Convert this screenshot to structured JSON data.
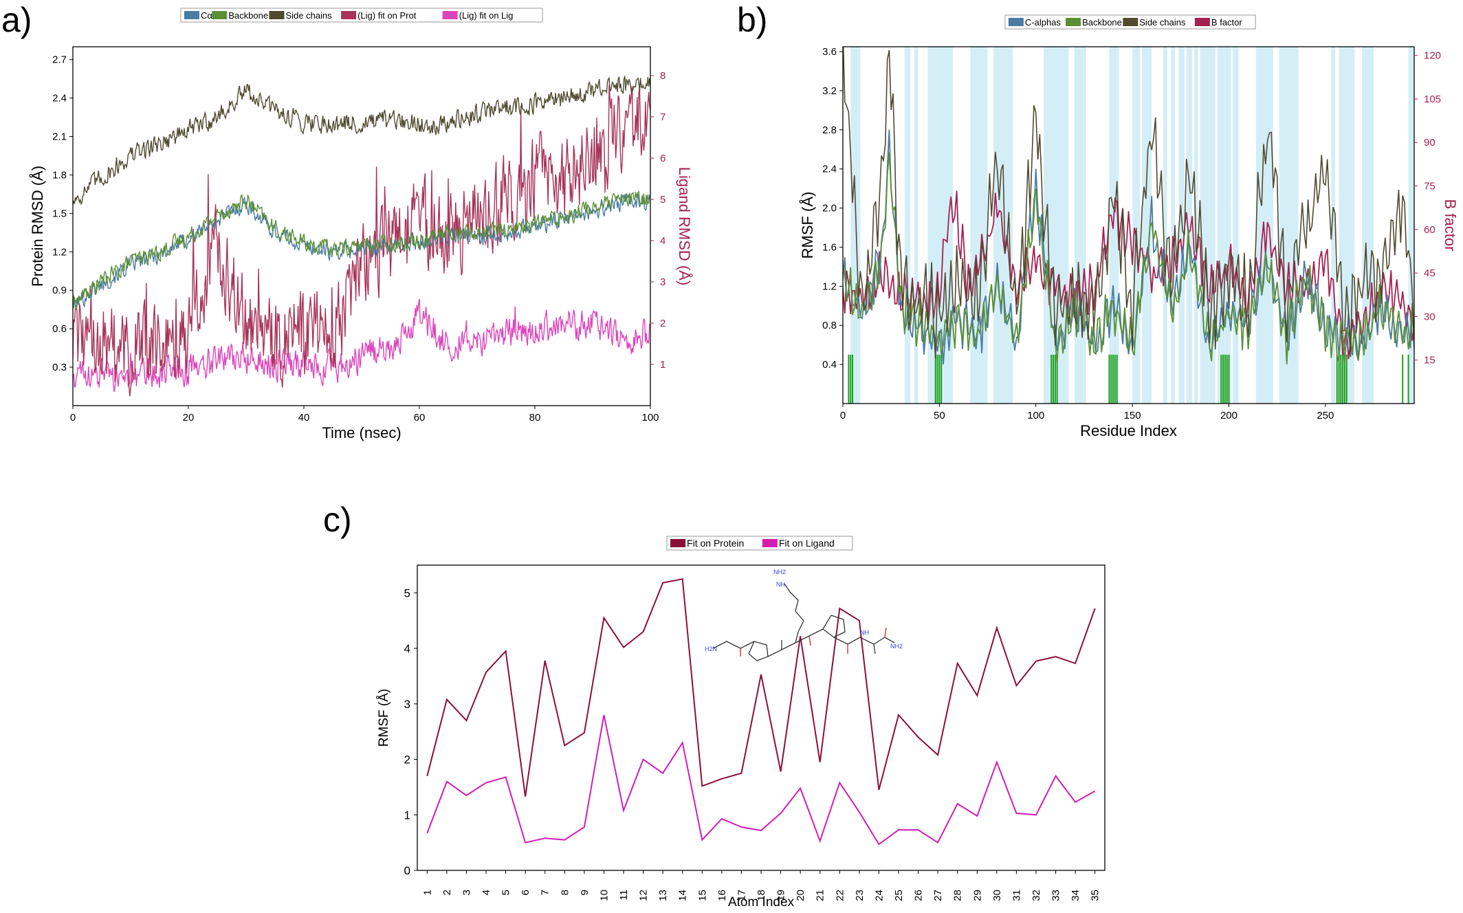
{
  "panel_labels": [
    "a)",
    "b)",
    "c)"
  ],
  "colors": {
    "calpha": "#4a7ba0",
    "backbone": "#5a8f35",
    "sidechains": "#4f4a30",
    "lig_prot": "#a83358",
    "lig_lig": "#dd44bb",
    "bfactor": "#a52050",
    "ligand_axis": "#a5204a",
    "sse": "#d4eef7",
    "contact": "#1aa01a",
    "fit_protein": "#8b1038",
    "fit_ligand": "#d41cb5"
  },
  "chart_data": [
    {
      "type": "line",
      "panel": "a)",
      "xlabel": "Time (nsec)",
      "ylabel": "Protein RMSD (Å)",
      "y2label": "Ligand RMSD (Å)",
      "xlim": [
        0,
        100
      ],
      "ylim": [
        0.0,
        2.8
      ],
      "y2lim": [
        0,
        8.7
      ],
      "xticks": [
        0,
        20,
        40,
        60,
        80,
        100
      ],
      "yticks": [
        0.3,
        0.6,
        0.9,
        1.2,
        1.5,
        1.8,
        2.1,
        2.4,
        2.7
      ],
      "y2ticks": [
        1,
        2,
        3,
        4,
        5,
        6,
        7,
        8
      ],
      "legend": [
        "Cα",
        "Backbone",
        "Side chains",
        "(Lig) fit on Prot",
        "(Lig) fit on Lig"
      ],
      "legend_position": "top-center",
      "series": [
        {
          "name": "Cα",
          "axis": "left",
          "x": [
            0,
            5,
            10,
            15,
            20,
            25,
            30,
            35,
            40,
            45,
            50,
            55,
            60,
            65,
            70,
            75,
            80,
            85,
            90,
            95,
            100
          ],
          "y": [
            0.78,
            0.95,
            1.1,
            1.18,
            1.3,
            1.45,
            1.58,
            1.35,
            1.25,
            1.2,
            1.22,
            1.25,
            1.28,
            1.32,
            1.32,
            1.35,
            1.4,
            1.45,
            1.52,
            1.58,
            1.6
          ]
        },
        {
          "name": "Backbone",
          "axis": "left",
          "x": [
            0,
            5,
            10,
            15,
            20,
            25,
            30,
            35,
            40,
            45,
            50,
            55,
            60,
            65,
            70,
            75,
            80,
            85,
            90,
            95,
            100
          ],
          "y": [
            0.8,
            0.97,
            1.12,
            1.2,
            1.32,
            1.48,
            1.6,
            1.38,
            1.27,
            1.22,
            1.25,
            1.27,
            1.3,
            1.35,
            1.35,
            1.38,
            1.42,
            1.48,
            1.55,
            1.6,
            1.62
          ]
        },
        {
          "name": "Side chains",
          "axis": "left",
          "x": [
            0,
            5,
            10,
            15,
            20,
            25,
            30,
            35,
            40,
            45,
            50,
            55,
            60,
            65,
            70,
            75,
            80,
            85,
            90,
            95,
            100
          ],
          "y": [
            1.6,
            1.78,
            1.95,
            2.05,
            2.15,
            2.25,
            2.45,
            2.3,
            2.22,
            2.2,
            2.2,
            2.22,
            2.2,
            2.2,
            2.28,
            2.33,
            2.35,
            2.4,
            2.45,
            2.5,
            2.52
          ]
        },
        {
          "name": "(Lig) fit on Prot",
          "axis": "right",
          "x": [
            0,
            5,
            10,
            15,
            20,
            25,
            30,
            35,
            40,
            45,
            50,
            55,
            60,
            65,
            70,
            75,
            80,
            85,
            90,
            95,
            100
          ],
          "y": [
            1.5,
            1.6,
            1.4,
            1.5,
            1.6,
            3.8,
            2.0,
            1.6,
            1.8,
            1.7,
            3.5,
            3.8,
            4.5,
            4.2,
            4.5,
            5.0,
            5.5,
            5.3,
            6.2,
            6.6,
            7.0
          ]
        },
        {
          "name": "(Lig) fit on Lig",
          "axis": "right",
          "x": [
            0,
            5,
            10,
            15,
            20,
            25,
            30,
            35,
            40,
            45,
            50,
            55,
            60,
            65,
            70,
            75,
            80,
            85,
            90,
            95,
            100
          ],
          "y": [
            0.8,
            0.8,
            0.7,
            0.8,
            0.9,
            1.2,
            1.2,
            1.0,
            1.0,
            0.9,
            1.2,
            1.4,
            2.2,
            1.5,
            1.6,
            1.8,
            1.9,
            1.9,
            2.0,
            1.6,
            1.8
          ]
        }
      ]
    },
    {
      "type": "line",
      "panel": "b)",
      "xlabel": "Residue Index",
      "ylabel": "RMSF (Å)",
      "y2label": "B factor",
      "xlim": [
        0,
        296
      ],
      "ylim": [
        0.0,
        3.65
      ],
      "y2lim": [
        0,
        123
      ],
      "xticks": [
        0,
        50,
        100,
        150,
        200,
        250
      ],
      "yticks": [
        0.4,
        0.8,
        1.2,
        1.6,
        2.0,
        2.4,
        2.8,
        3.2,
        3.6
      ],
      "y2ticks": [
        15,
        30,
        45,
        60,
        75,
        90,
        105,
        120
      ],
      "legend": [
        "C-alphas",
        "Backbone",
        "Side chains",
        "B factor"
      ],
      "legend_position": "top-center",
      "sse_regions": [
        [
          4,
          9
        ],
        [
          32,
          35
        ],
        [
          37,
          39
        ],
        [
          44,
          57
        ],
        [
          66,
          75
        ],
        [
          78,
          88
        ],
        [
          104,
          117
        ],
        [
          120,
          126
        ],
        [
          138,
          143
        ],
        [
          150,
          154
        ],
        [
          155,
          160
        ],
        [
          166,
          168
        ],
        [
          170,
          172
        ],
        [
          174,
          177
        ],
        [
          178,
          181
        ],
        [
          182,
          184
        ],
        [
          185,
          193
        ],
        [
          194,
          198
        ],
        [
          198,
          201
        ],
        [
          202,
          205
        ],
        [
          214,
          223
        ],
        [
          226,
          236
        ],
        [
          253,
          255
        ],
        [
          257,
          265
        ],
        [
          269,
          275
        ],
        [
          293,
          296
        ]
      ],
      "contacts": [
        3,
        4,
        5,
        48,
        49,
        50,
        51,
        108,
        109,
        110,
        111,
        138,
        139,
        140,
        141,
        142,
        196,
        197,
        198,
        199,
        200,
        256,
        257,
        258,
        259,
        260,
        261,
        290,
        293
      ],
      "series": [
        {
          "name": "C-alphas",
          "axis": "left",
          "x": [
            0,
            10,
            20,
            24,
            30,
            40,
            50,
            60,
            70,
            80,
            90,
            100,
            110,
            120,
            130,
            140,
            150,
            160,
            170,
            180,
            190,
            200,
            210,
            220,
            230,
            240,
            250,
            260,
            270,
            280,
            290,
            296
          ],
          "y": [
            1.3,
            0.9,
            1.5,
            2.6,
            1.0,
            0.8,
            0.6,
            0.9,
            0.7,
            1.2,
            0.6,
            2.2,
            0.6,
            1.0,
            0.6,
            1.0,
            0.6,
            1.9,
            0.9,
            1.6,
            0.6,
            0.9,
            0.8,
            1.5,
            0.7,
            1.3,
            0.8,
            0.6,
            0.7,
            1.0,
            0.7,
            0.8
          ]
        },
        {
          "name": "Backbone",
          "axis": "left",
          "x": [
            0,
            10,
            20,
            24,
            30,
            40,
            50,
            60,
            70,
            80,
            90,
            100,
            110,
            120,
            130,
            140,
            150,
            160,
            170,
            180,
            190,
            200,
            210,
            220,
            230,
            240,
            250,
            260,
            270,
            280,
            290,
            296
          ],
          "y": [
            1.3,
            0.9,
            1.5,
            2.55,
            1.0,
            0.8,
            0.6,
            0.9,
            0.7,
            1.2,
            0.6,
            2.15,
            0.6,
            1.0,
            0.6,
            1.0,
            0.6,
            1.85,
            0.9,
            1.55,
            0.6,
            0.9,
            0.8,
            1.45,
            0.7,
            1.3,
            0.8,
            0.6,
            0.7,
            1.0,
            0.7,
            0.8
          ]
        },
        {
          "name": "Side chains",
          "axis": "left",
          "x": [
            0,
            10,
            20,
            24,
            30,
            40,
            50,
            60,
            70,
            80,
            90,
            100,
            110,
            120,
            130,
            140,
            150,
            160,
            170,
            180,
            190,
            200,
            210,
            220,
            230,
            240,
            250,
            260,
            270,
            280,
            290,
            296
          ],
          "y": [
            3.6,
            1.0,
            2.2,
            3.6,
            1.2,
            1.0,
            0.9,
            1.2,
            1.0,
            2.6,
            0.9,
            2.9,
            0.9,
            1.2,
            0.9,
            2.2,
            0.9,
            2.9,
            1.2,
            2.4,
            0.9,
            1.3,
            1.0,
            2.9,
            1.0,
            1.8,
            2.5,
            0.8,
            1.2,
            1.4,
            2.1,
            1.0
          ]
        },
        {
          "name": "B factor",
          "axis": "right",
          "x": [
            0,
            10,
            20,
            30,
            40,
            50,
            57,
            65,
            70,
            80,
            90,
            100,
            110,
            120,
            130,
            140,
            150,
            160,
            170,
            180,
            190,
            200,
            210,
            220,
            230,
            240,
            250,
            260,
            270,
            280,
            290,
            296
          ],
          "y": [
            40,
            35,
            45,
            38,
            35,
            38,
            72,
            40,
            45,
            68,
            40,
            50,
            40,
            35,
            40,
            65,
            55,
            45,
            50,
            60,
            40,
            48,
            35,
            60,
            40,
            42,
            50,
            22,
            28,
            40,
            35,
            30
          ]
        }
      ]
    },
    {
      "type": "line",
      "panel": "c)",
      "xlabel": "Atom Index",
      "ylabel": "RMSF (Å)",
      "xlim": [
        0.5,
        35.5
      ],
      "ylim": [
        0,
        5.5
      ],
      "yticks": [
        0,
        1,
        2,
        3,
        4,
        5
      ],
      "categories": [
        1,
        2,
        3,
        4,
        5,
        6,
        7,
        8,
        9,
        10,
        11,
        12,
        13,
        14,
        15,
        16,
        17,
        18,
        19,
        20,
        21,
        22,
        23,
        24,
        25,
        26,
        27,
        28,
        29,
        30,
        31,
        32,
        33,
        34,
        35
      ],
      "legend": [
        "Fit on Protein",
        "Fit on Ligand"
      ],
      "legend_position": "top-center",
      "series": [
        {
          "name": "Fit on Protein",
          "values": [
            1.7,
            3.08,
            2.7,
            3.57,
            3.95,
            1.33,
            3.78,
            2.25,
            2.48,
            4.55,
            4.02,
            4.3,
            5.18,
            5.25,
            1.52,
            1.65,
            1.75,
            3.53,
            1.78,
            4.22,
            1.95,
            4.72,
            4.5,
            1.45,
            2.8,
            2.4,
            2.08,
            3.73,
            3.15,
            4.37,
            3.33,
            3.77,
            3.85,
            3.73,
            4.72
          ]
        },
        {
          "name": "Fit on Ligand",
          "values": [
            0.67,
            1.6,
            1.35,
            1.58,
            1.68,
            0.5,
            0.58,
            0.55,
            0.78,
            2.8,
            1.08,
            2.0,
            1.75,
            2.3,
            0.55,
            0.93,
            0.78,
            0.72,
            1.03,
            1.48,
            0.53,
            1.58,
            1.05,
            0.47,
            0.73,
            0.73,
            0.5,
            1.2,
            0.98,
            1.95,
            1.03,
            1.0,
            1.7,
            1.23,
            1.43
          ]
        }
      ]
    }
  ]
}
